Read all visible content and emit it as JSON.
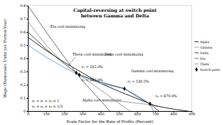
{
  "chart_data": {
    "type": "line",
    "title": [
      "Capital-reversing at switch point",
      "between Gamma and Delta"
    ],
    "x_label": "Scale Factor for the Rate of Profits (Percent)",
    "y_label": "Wage (Numeraire Units per Person-Year)",
    "xlim": [
      0,
      900
    ],
    "xticks": [
      0,
      100,
      200,
      300,
      400,
      500,
      600,
      700,
      800,
      900
    ],
    "ylim": [
      0,
      0.8
    ],
    "yticks": [
      0,
      0.1,
      0.2,
      0.3,
      0.4,
      0.5,
      0.6,
      0.7,
      0.8
    ],
    "grid": false,
    "legend": "right",
    "series": [
      {
        "name": "Alpha",
        "type": "line",
        "color": "#000000",
        "line_style": "solid",
        "x": [
          0,
          100,
          200,
          300,
          400,
          500,
          600,
          700,
          800,
          880
        ],
        "values": [
          0.56,
          0.46,
          0.37,
          0.29,
          0.21,
          0.15,
          0.095,
          0.04,
          0.015,
          0
        ]
      },
      {
        "name": "Gamma",
        "type": "line",
        "color": "#5b9bd5",
        "line_style": "solid",
        "x": [
          0,
          100,
          200,
          300,
          400,
          530.5,
          600,
          670.9,
          690
        ],
        "values": [
          0.5,
          0.41,
          0.33,
          0.26,
          0.21,
          0.17,
          0.12,
          0.055,
          0
        ]
      },
      {
        "name": "Delta",
        "type": "line",
        "color": "#2f2f2f",
        "line_style": "solid",
        "x": [
          0,
          100,
          200,
          283,
          400,
          530.5,
          600,
          670.9,
          720
        ],
        "values": [
          0.6,
          0.47,
          0.36,
          0.275,
          0.22,
          0.17,
          0.11,
          0.055,
          0
        ]
      },
      {
        "name": "Eta",
        "type": "line",
        "color": "#595959",
        "line_style": "solid",
        "x": [
          0,
          100,
          200,
          265.9,
          300,
          400,
          450
        ],
        "values": [
          0.8,
          0.6,
          0.41,
          0.29,
          0.23,
          0.08,
          0
        ]
      },
      {
        "name": "Theta",
        "type": "line",
        "color": "#8c8c8c",
        "line_style": "solid",
        "x": [
          0,
          100,
          200,
          265.9,
          283,
          400,
          500,
          560
        ],
        "values": [
          0.68,
          0.5,
          0.36,
          0.29,
          0.275,
          0.16,
          0.06,
          0
        ]
      },
      {
        "name": "Switch point",
        "type": "scatter",
        "color": "#000000",
        "marker": "diamond",
        "x": [
          265.9,
          283,
          530.5,
          670.9
        ],
        "values": [
          0.29,
          0.275,
          0.17,
          0.055
        ]
      }
    ],
    "annotations": [
      "Eta cost-minimizing",
      "Theta cost-minimizing",
      "Delta cost-minimizing",
      "Gamma cost-minimizing",
      "Alpha cost-minimizing",
      "r₁ ≈ 265.9%",
      "r₂ ≈ 283.0%",
      "r₃ ≈ 530.5%",
      "r₄ ≈ 670.9%",
      "s₁ + s₂ + s₃ = 1",
      "s₁ = s₂ = s₃ = 1/3"
    ]
  }
}
